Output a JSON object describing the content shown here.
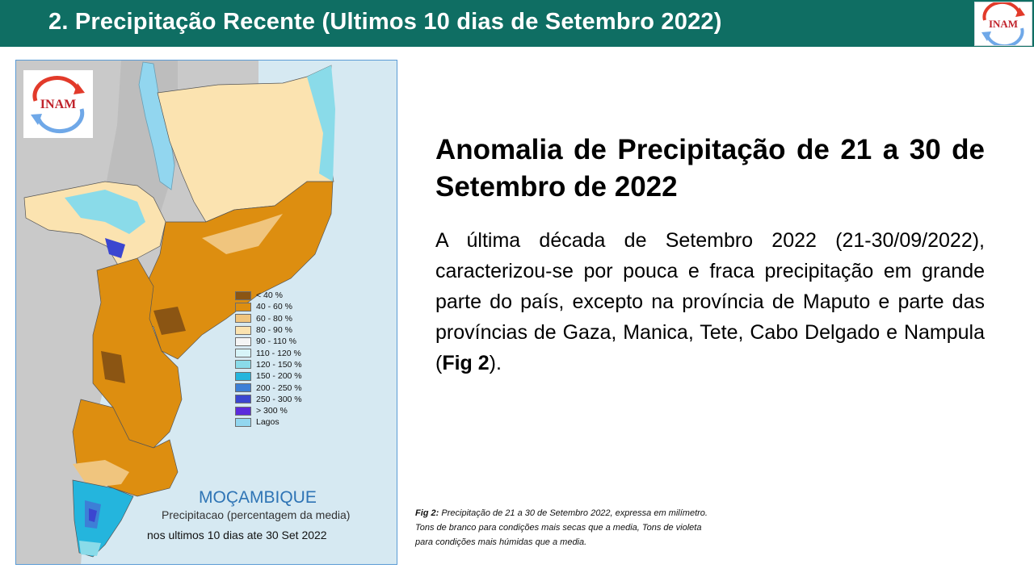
{
  "header": {
    "title": "2. Precipitação Recente (Ultimos 10 dias de Setembro 2022)",
    "logo_text": "INAM",
    "background_color": "#0f6e63"
  },
  "map": {
    "logo_text": "INAM",
    "legend": [
      {
        "label": "< 40 %",
        "color": "#8b5513"
      },
      {
        "label": "40 - 60 %",
        "color": "#dd8e10"
      },
      {
        "label": "60 - 80 %",
        "color": "#f0c57e"
      },
      {
        "label": "80 - 90 %",
        "color": "#fbe3b0"
      },
      {
        "label": "90 - 110 %",
        "color": "#f5f5f5"
      },
      {
        "label": "110 - 120 %",
        "color": "#d7f4f8"
      },
      {
        "label": "120 - 150 %",
        "color": "#8adbe9"
      },
      {
        "label": "150 - 200 %",
        "color": "#24b5dd"
      },
      {
        "label": "200 - 250 %",
        "color": "#3d7fd6"
      },
      {
        "label": "250 - 300 %",
        "color": "#3b46d0"
      },
      {
        "label": "> 300 %",
        "color": "#5b2bdc"
      },
      {
        "label": "Lagos",
        "color": "#92d6ef"
      }
    ],
    "country": "MOÇAMBIQUE",
    "subtitle": "Precipitacao (percentagem da media)",
    "period": "nos ultimos 10 dias ate 30 Set 2022"
  },
  "content": {
    "title": "Anomalia de Precipitação de 21 a 30 de  Setembro de 2022",
    "body_text": "A última década de Setembro 2022 (21-30/09/2022), caracterizou-se por  pouca e fraca precipitação em grande parte do país, excepto na província de Maputo e parte das províncias de Gaza, Manica, Tete, Cabo Delgado e Nampula (",
    "body_bold": "Fig 2",
    "body_end": ")."
  },
  "caption": {
    "label": "Fig 2:",
    "line1": " Precipitação de 21 a 30 de Setembro 2022,  expressa em milímetro.",
    "line2": "Tons de branco para condições mais secas que a media, Tons de violeta",
    "line3": "para condições mais húmidas que a media."
  }
}
